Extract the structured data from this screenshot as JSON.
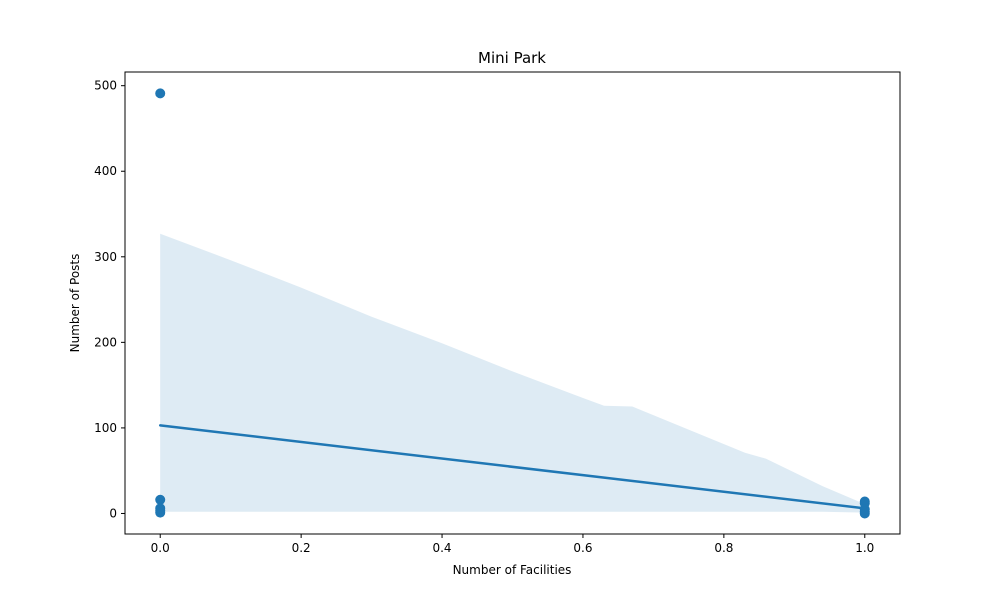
{
  "chart_data": {
    "type": "scatter",
    "title": "Mini Park",
    "xlabel": "Number of Facilities",
    "ylabel": "Number of Posts",
    "xlim": [
      -0.05,
      1.05
    ],
    "ylim": [
      -24,
      516
    ],
    "xticks": [
      0.0,
      0.2,
      0.4,
      0.6,
      0.8,
      1.0
    ],
    "xtick_labels": [
      "0.0",
      "0.2",
      "0.4",
      "0.6",
      "0.8",
      "1.0"
    ],
    "yticks": [
      0,
      100,
      200,
      300,
      400,
      500
    ],
    "ytick_labels": [
      "0",
      "100",
      "200",
      "300",
      "400",
      "500"
    ],
    "grid": false,
    "color": "#1f77b4",
    "band_color": "#1f77b4",
    "points": [
      {
        "x": 0,
        "y": 491
      },
      {
        "x": 0,
        "y": 16
      },
      {
        "x": 0,
        "y": 6
      },
      {
        "x": 0,
        "y": 3
      },
      {
        "x": 0,
        "y": 1
      },
      {
        "x": 1,
        "y": 14
      },
      {
        "x": 1,
        "y": 12
      },
      {
        "x": 1,
        "y": 5
      },
      {
        "x": 1,
        "y": 2
      },
      {
        "x": 1,
        "y": 0
      }
    ],
    "regression_line": {
      "x": [
        0,
        1
      ],
      "y": [
        103,
        6
      ]
    },
    "confidence_band": {
      "x": [
        0,
        0.1,
        0.2,
        0.3,
        0.4,
        0.5,
        0.6,
        0.63,
        0.67,
        0.75,
        0.83,
        0.86,
        0.94,
        1.0
      ],
      "upper": [
        327,
        296,
        264,
        230,
        199,
        166,
        135,
        126,
        125,
        98,
        71,
        64,
        32,
        11
      ],
      "lower": [
        2,
        2,
        2,
        2,
        2,
        2,
        2,
        2,
        2,
        2,
        2,
        2,
        2,
        1
      ]
    }
  }
}
